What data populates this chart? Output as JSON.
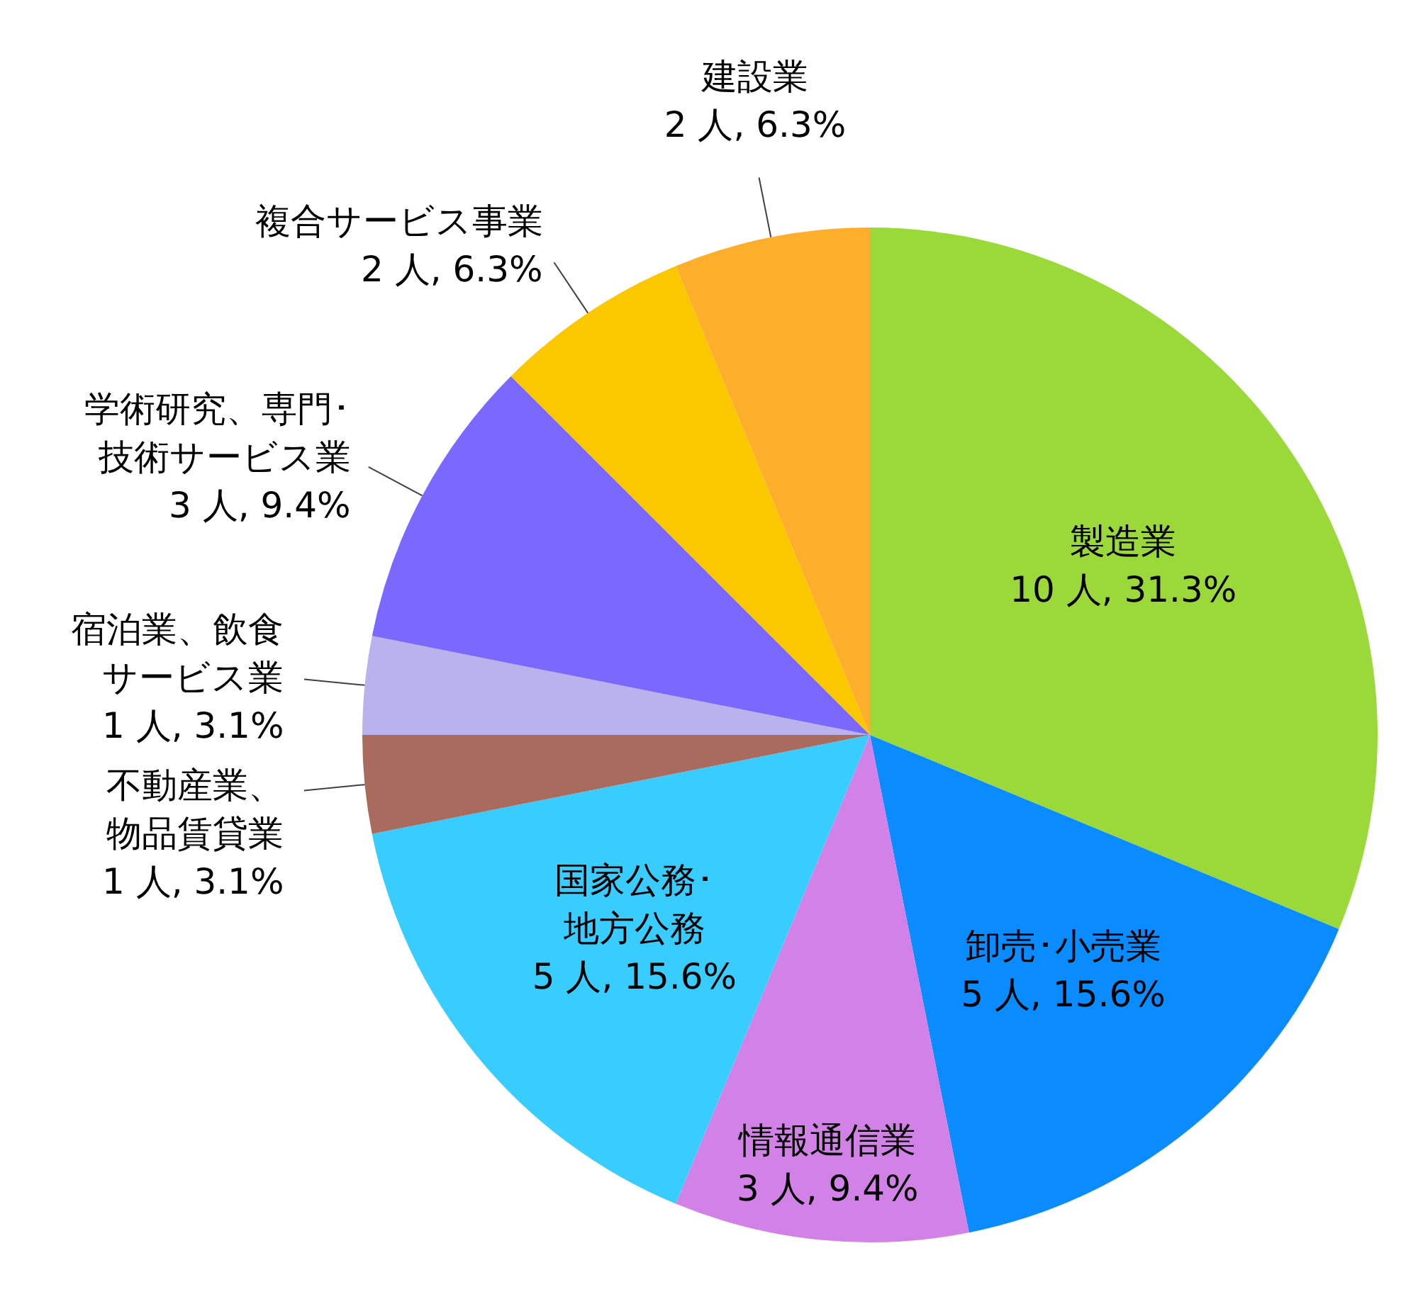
{
  "chart_data": {
    "type": "pie",
    "categories": [
      "製造業",
      "卸売･小売業",
      "情報通信業",
      "国家公務･地方公務",
      "不動産業、物品賃貸業",
      "宿泊業、飲食サービス業",
      "学術研究、専門･技術サービス業",
      "複合サービス事業",
      "建設業"
    ],
    "values": [
      10,
      5,
      3,
      5,
      1,
      1,
      3,
      2,
      2
    ],
    "colors": [
      "#9bd93a",
      "#0a8cff",
      "#d282e6",
      "#38ccff",
      "#a86b5e",
      "#b9b2ec",
      "#7b68ff",
      "#fbc800",
      "#fdae2a"
    ],
    "value_labels": [
      "10 人, 31.3%",
      "5 人, 15.6%",
      "3 人, 9.4%",
      "5 人, 15.6%",
      "1 人, 3.1%",
      "1 人, 3.1%",
      "3 人, 9.4%",
      "2 人, 6.3%",
      "2 人, 6.3%"
    ]
  }
}
